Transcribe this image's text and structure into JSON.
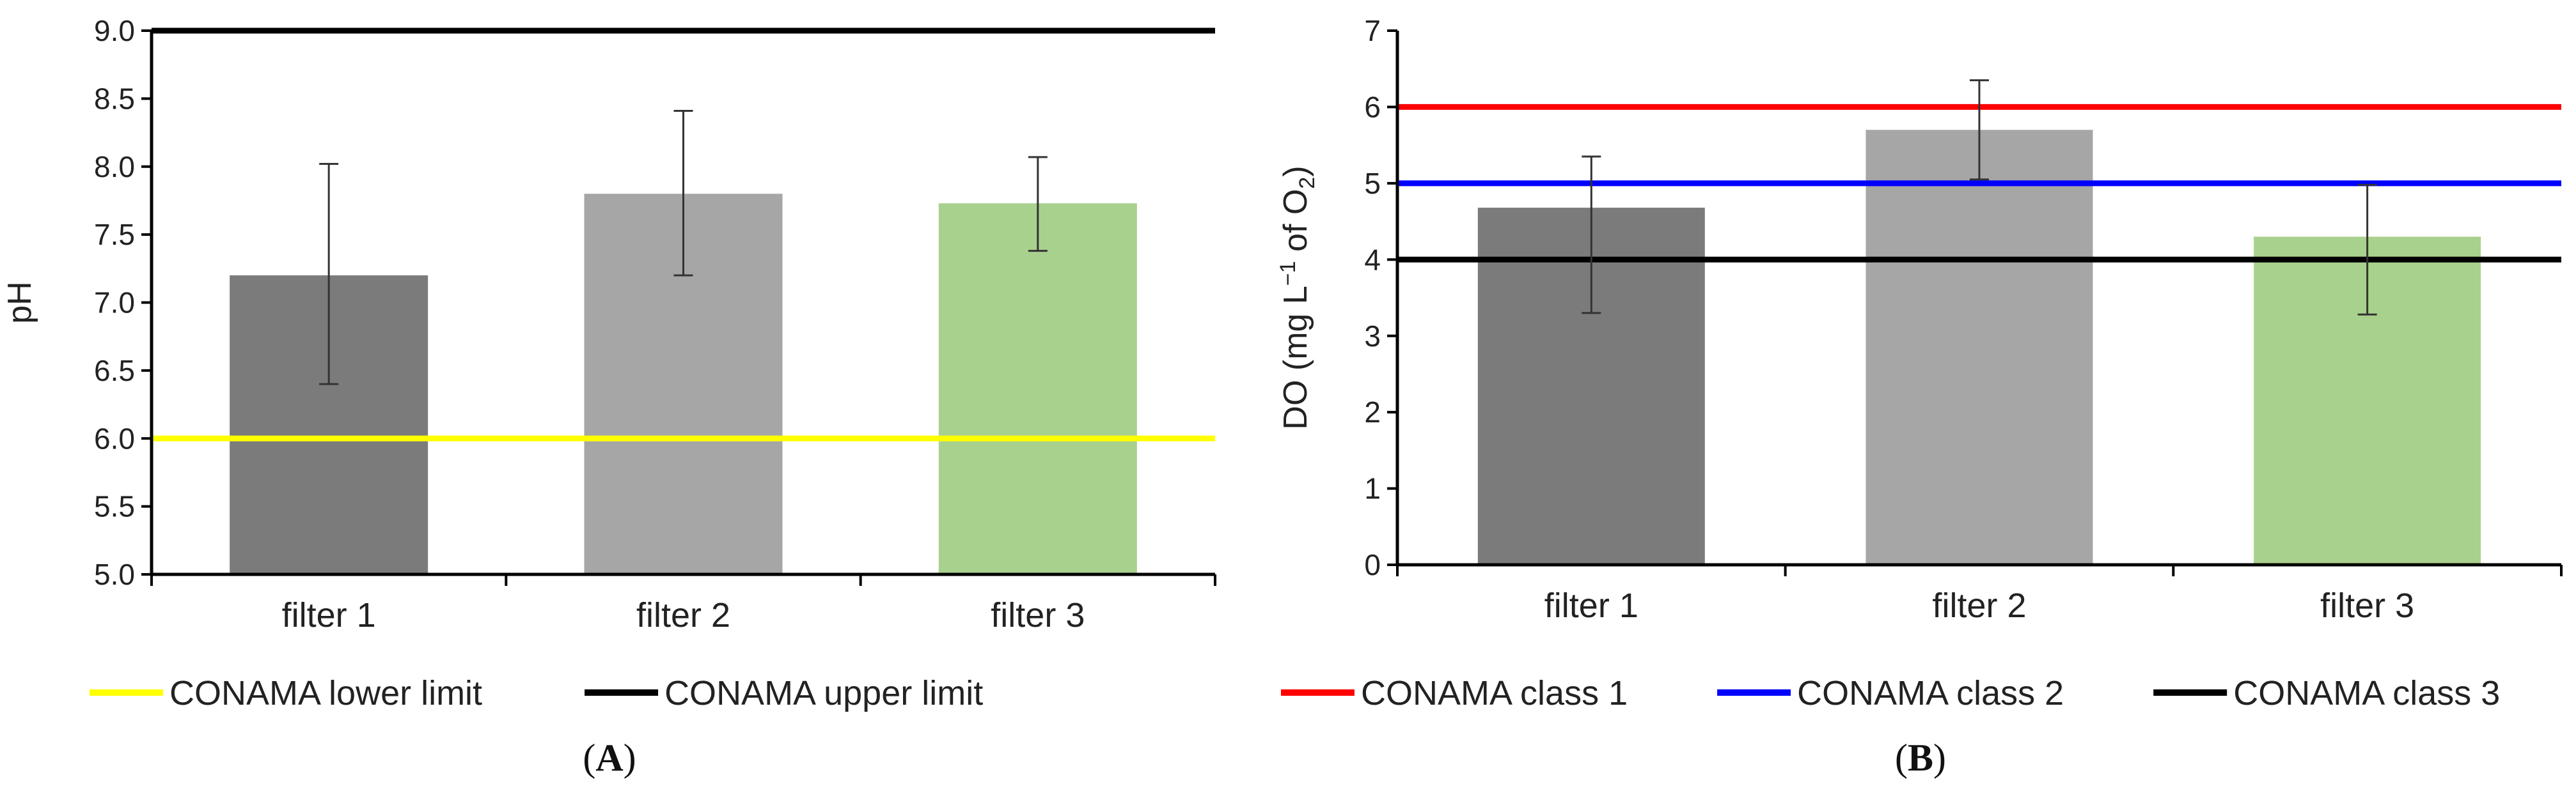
{
  "chart_data": [
    {
      "type": "bar",
      "panel_label": "(A)",
      "panel_label_parts": [
        "(",
        "A",
        ")"
      ],
      "categories": [
        "filter 1",
        "filter 2",
        "filter 3"
      ],
      "values": [
        7.2,
        7.8,
        7.73
      ],
      "error_low": [
        6.4,
        7.2,
        7.38
      ],
      "error_high": [
        8.02,
        8.41,
        8.07
      ],
      "bar_colors": [
        "#7b7b7b",
        "#a6a6a6",
        "#a9d18e"
      ],
      "title": "",
      "xlabel": "",
      "ylabel": "pH",
      "ylim": [
        5.0,
        9.0
      ],
      "yticks": [
        "5.0",
        "5.5",
        "6.0",
        "6.5",
        "7.0",
        "7.5",
        "8.0",
        "8.5",
        "9.0"
      ],
      "reference_lines": [
        {
          "name": "CONAMA lower limit",
          "value": 6.0,
          "color": "#ffff00"
        },
        {
          "name": "CONAMA upper limit",
          "value": 9.0,
          "color": "#000000"
        }
      ],
      "legend_position": "bottom"
    },
    {
      "type": "bar",
      "panel_label": "(B)",
      "panel_label_parts": [
        "(",
        "B",
        ")"
      ],
      "categories": [
        "filter 1",
        "filter 2",
        "filter 3"
      ],
      "values": [
        4.68,
        5.7,
        4.3
      ],
      "error_low": [
        3.3,
        5.05,
        3.28
      ],
      "error_high": [
        5.35,
        6.35,
        4.98
      ],
      "bar_colors": [
        "#7b7b7b",
        "#a6a6a6",
        "#a9d18e"
      ],
      "title": "",
      "xlabel": "",
      "ylabel_parts": {
        "main": "DO (mg L",
        "sup": "−1",
        "mid": " of O",
        "sub": "2",
        "end": ")"
      },
      "ylim": [
        0,
        7
      ],
      "yticks": [
        "0",
        "1",
        "2",
        "3",
        "4",
        "5",
        "6",
        "7"
      ],
      "reference_lines": [
        {
          "name": "CONAMA class 1",
          "value": 6.0,
          "color": "#ff0000"
        },
        {
          "name": "CONAMA class 2",
          "value": 5.0,
          "color": "#0000ff"
        },
        {
          "name": "CONAMA class 3",
          "value": 4.0,
          "color": "#000000"
        }
      ],
      "legend_position": "bottom"
    }
  ]
}
